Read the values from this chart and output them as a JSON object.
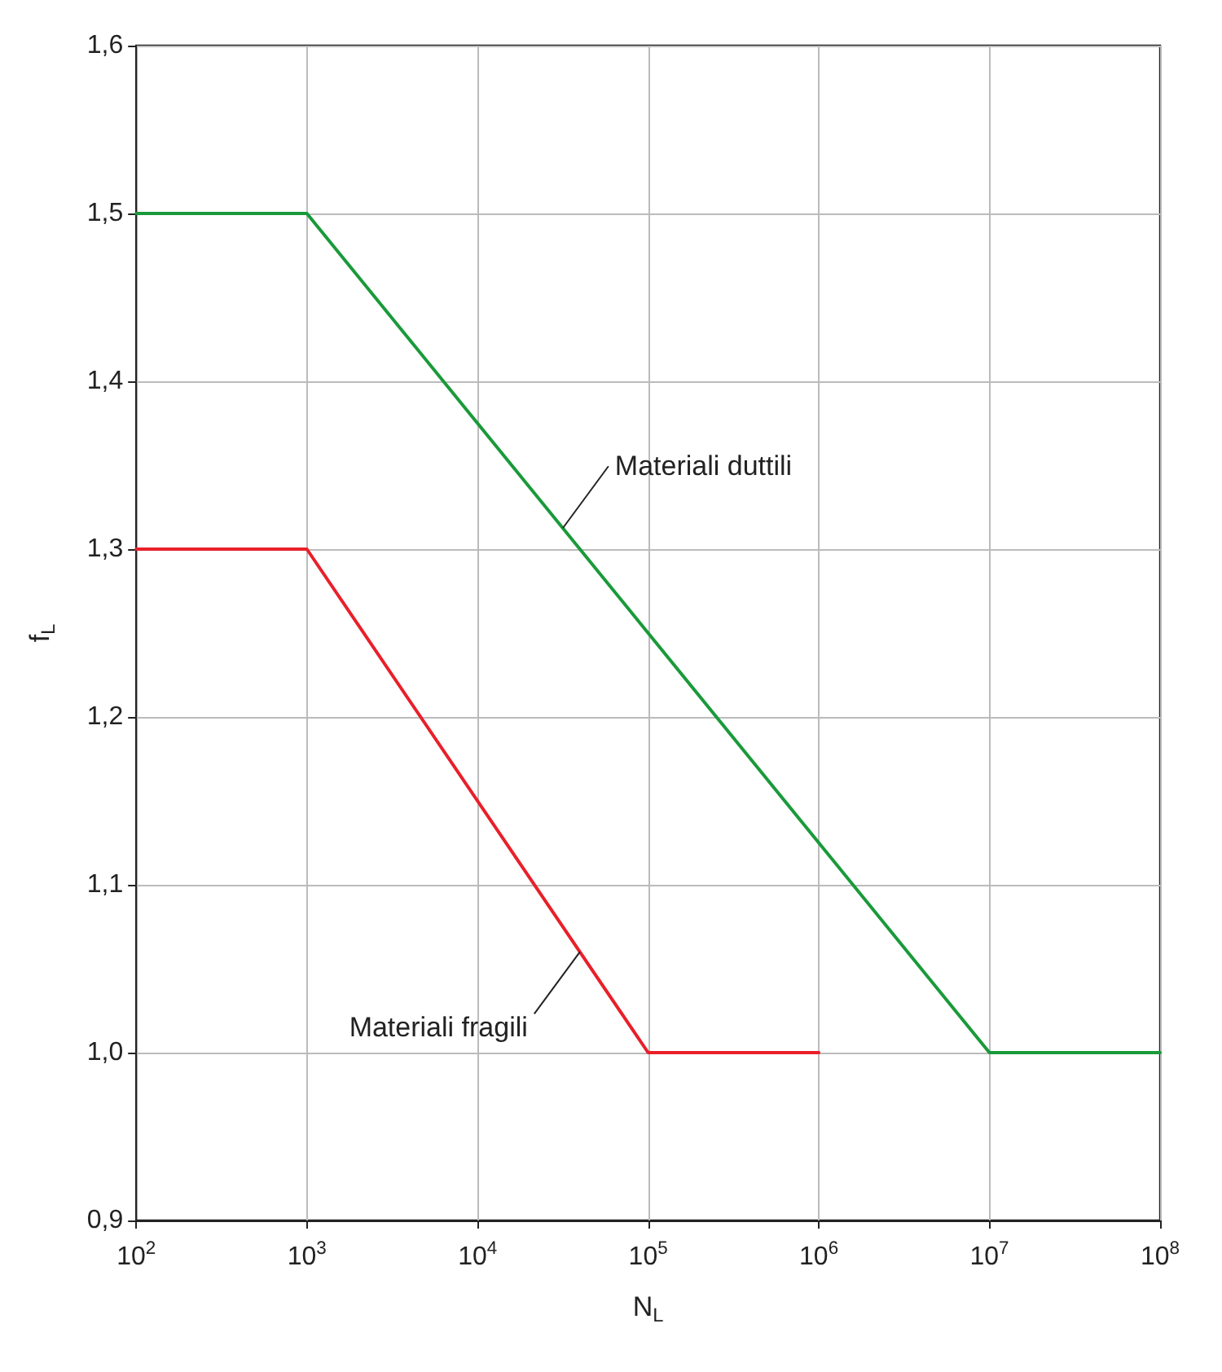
{
  "chart_data": {
    "type": "line",
    "xlabel": "N$_{L}$",
    "ylabel": "f$_{L}$",
    "log": "x",
    "xlim": [
      100,
      100000000
    ],
    "ylim": [
      0.9,
      1.6
    ],
    "xticks": [
      {
        "value": 100,
        "label": "10$^{2}$"
      },
      {
        "value": 1000,
        "label": "10$^{3}$"
      },
      {
        "value": 10000,
        "label": "10$^{4}$"
      },
      {
        "value": 100000,
        "label": "10$^{5}$"
      },
      {
        "value": 1000000,
        "label": "10$^{6}$"
      },
      {
        "value": 10000000,
        "label": "10$^{7}$"
      },
      {
        "value": 100000000,
        "label": "10$^{8}$"
      }
    ],
    "yticks": [
      {
        "value": 0.9,
        "label": "0,9"
      },
      {
        "value": 1.0,
        "label": "1,0"
      },
      {
        "value": 1.1,
        "label": "1,1"
      },
      {
        "value": 1.2,
        "label": "1,2"
      },
      {
        "value": 1.3,
        "label": "1,3"
      },
      {
        "value": 1.4,
        "label": "1,4"
      },
      {
        "value": 1.5,
        "label": "1,5"
      },
      {
        "value": 1.6,
        "label": "1,6"
      }
    ],
    "grid": true,
    "marker": "none",
    "line_style": "solid",
    "series": [
      {
        "color": "#1a9a3a",
        "x": [
          100,
          1000,
          10000000,
          100000000
        ],
        "values": [
          1.5,
          1.5,
          1.0,
          1.0
        ]
      },
      {
        "color": "#e8202a",
        "x": [
          100,
          1000,
          100000,
          1000000
        ],
        "values": [
          1.3,
          1.3,
          1.0,
          1.0
        ]
      }
    ],
    "annotations": [
      {
        "text": "Materiali duttili",
        "x": 31623,
        "y": 1.3125
      },
      {
        "text": "Materiali fragili",
        "x": 39811,
        "y": 1.06
      }
    ]
  }
}
